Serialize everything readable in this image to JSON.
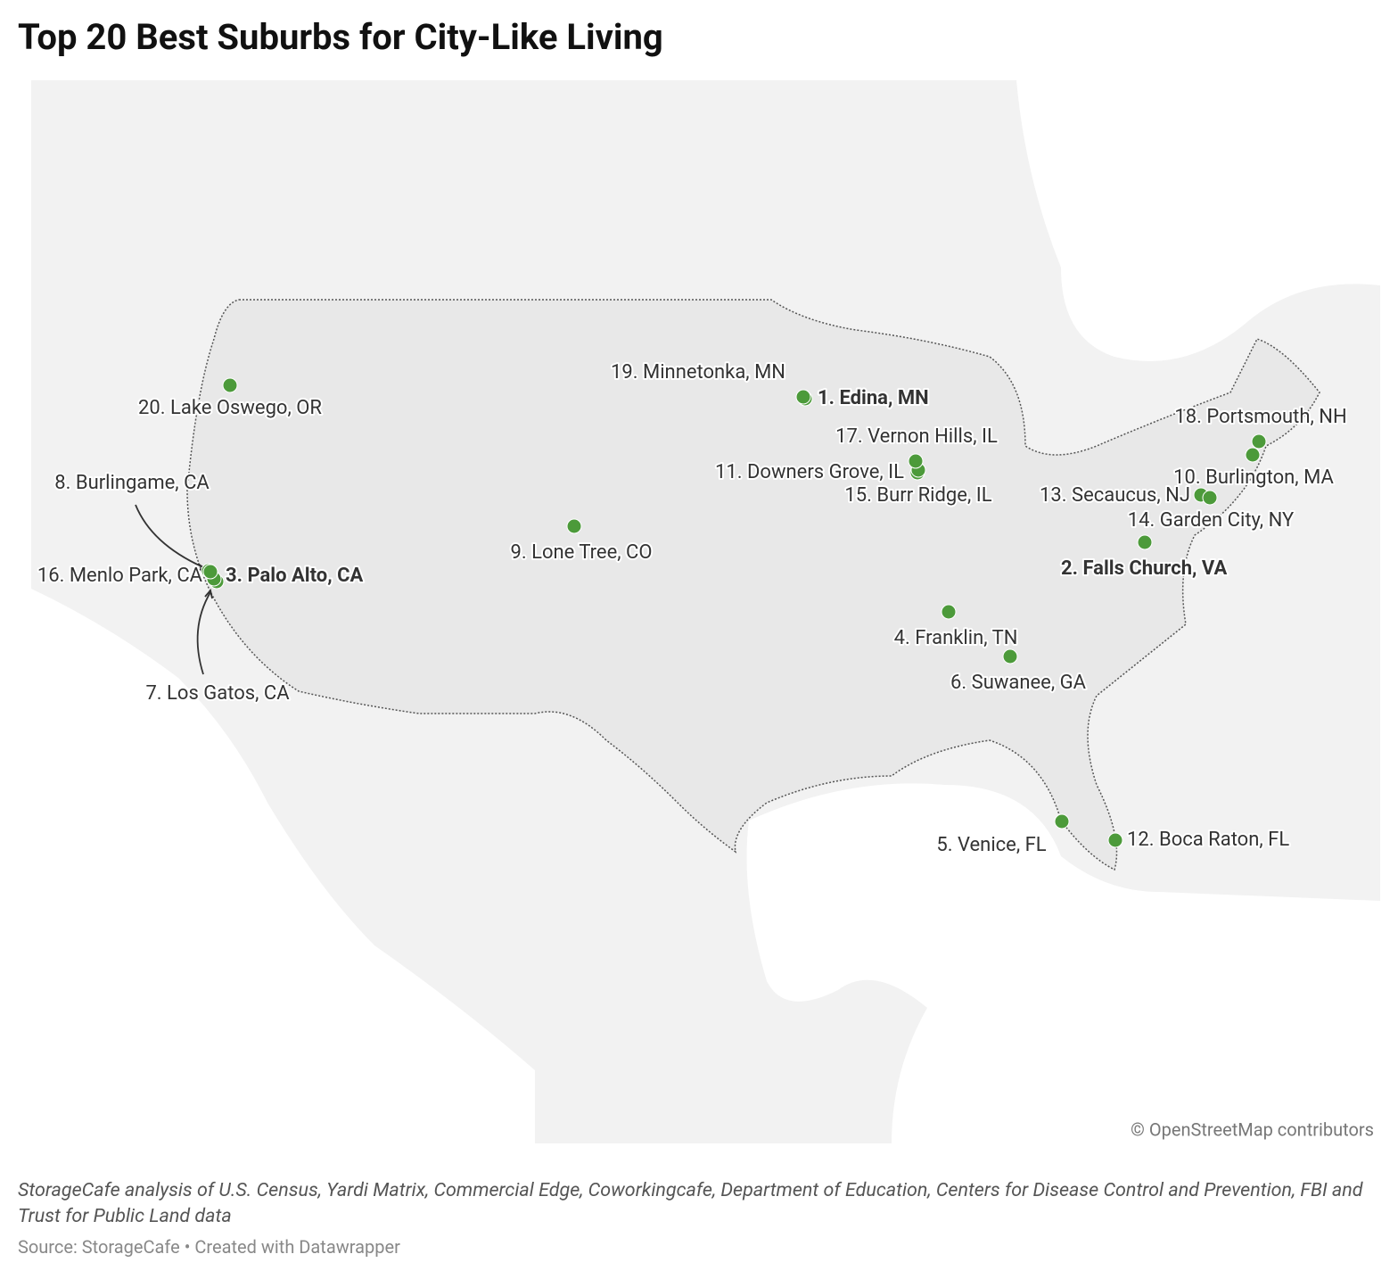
{
  "header": {
    "title": "Top 20 Best Suburbs for City-Like Living"
  },
  "map": {
    "markers": [
      {
        "label": "1. Edina, MN",
        "bold": true
      },
      {
        "label": "2. Falls Church, VA",
        "bold": true
      },
      {
        "label": "3. Palo Alto, CA",
        "bold": true
      },
      {
        "label": "4. Franklin, TN",
        "bold": false
      },
      {
        "label": "5. Venice, FL",
        "bold": false
      },
      {
        "label": "6. Suwanee, GA",
        "bold": false
      },
      {
        "label": "7. Los Gatos, CA",
        "bold": false
      },
      {
        "label": "8. Burlingame, CA",
        "bold": false
      },
      {
        "label": "9. Lone Tree, CO",
        "bold": false
      },
      {
        "label": "10. Burlington, MA",
        "bold": false
      },
      {
        "label": "11. Downers Grove, IL",
        "bold": false
      },
      {
        "label": "12. Boca Raton, FL",
        "bold": false
      },
      {
        "label": "13. Secaucus, NJ",
        "bold": false
      },
      {
        "label": "14. Garden City, NY",
        "bold": false
      },
      {
        "label": "15. Burr Ridge, IL",
        "bold": false
      },
      {
        "label": "16. Menlo Park, CA",
        "bold": false
      },
      {
        "label": "17. Vernon Hills, IL",
        "bold": false
      },
      {
        "label": "18. Portsmouth, NH",
        "bold": false
      },
      {
        "label": "19. Minnetonka, MN",
        "bold": false
      },
      {
        "label": "20. Lake Oswego, OR",
        "bold": false
      }
    ],
    "marker_color": "#4c9a3a",
    "attribution": "© OpenStreetMap contributors"
  },
  "footer": {
    "notes": "StorageCafe analysis of U.S. Census, Yardi Matrix, Commercial Edge, Coworkingcafe, Department of Education, Centers for Disease Control and Prevention, FBI and Trust for Public Land data",
    "source": "Source: StorageCafe • Created with Datawrapper"
  }
}
